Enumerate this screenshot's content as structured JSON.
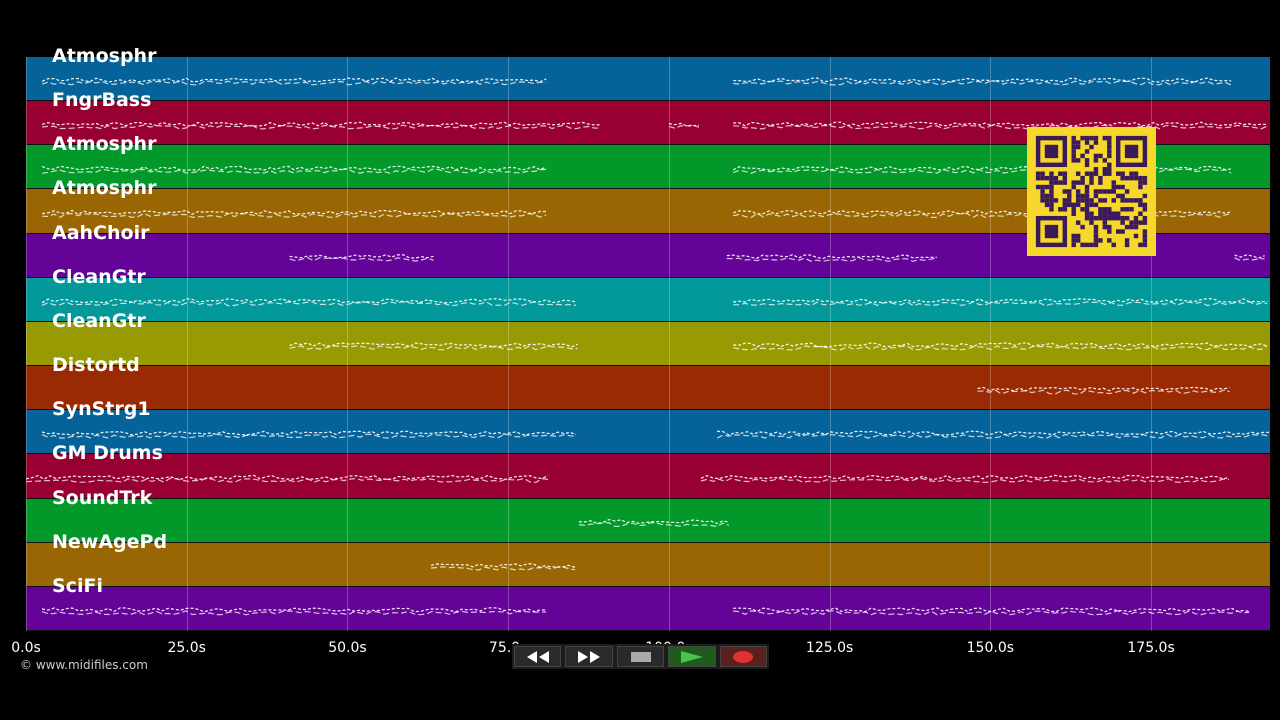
{
  "tracks": [
    {
      "name": "Atmosphr",
      "color": "#05639a"
    },
    {
      "name": "FngrBass",
      "color": "#980031"
    },
    {
      "name": "Atmosphr",
      "color": "#03982a"
    },
    {
      "name": "Atmosphr",
      "color": "#9a6603"
    },
    {
      "name": "AahChoir",
      "color": "#630398"
    },
    {
      "name": "CleanGtr",
      "color": "#03989a"
    },
    {
      "name": "CleanGtr",
      "color": "#989a03"
    },
    {
      "name": "Distortd",
      "color": "#9a2a03"
    },
    {
      "name": "SynStrg1",
      "color": "#05639a"
    },
    {
      "name": "GM Drums",
      "color": "#980031"
    },
    {
      "name": "SoundTrk",
      "color": "#03982a"
    },
    {
      "name": "NewAgePd",
      "color": "#9a6603"
    },
    {
      "name": "SciFi",
      "color": "#630398"
    }
  ],
  "time_axis": {
    "max_seconds": 193.5,
    "ticks": [
      {
        "value": 0,
        "label": "0.0s"
      },
      {
        "value": 25,
        "label": "25.0s"
      },
      {
        "value": 50,
        "label": "50.0s"
      },
      {
        "value": 75,
        "label": "75.0s"
      },
      {
        "value": 100,
        "label": "100.0s"
      },
      {
        "value": 125,
        "label": "125.0s"
      },
      {
        "value": 150,
        "label": "150.0s"
      },
      {
        "value": 175,
        "label": "175.0s"
      }
    ]
  },
  "note_segments": [
    {
      "track": 0,
      "start": 2.5,
      "end": 81.5
    },
    {
      "track": 0,
      "start": 110,
      "end": 188
    },
    {
      "track": 1,
      "start": 2.5,
      "end": 90
    },
    {
      "track": 1,
      "start": 100,
      "end": 105
    },
    {
      "track": 1,
      "start": 110,
      "end": 193.5
    },
    {
      "track": 2,
      "start": 2.5,
      "end": 81.5
    },
    {
      "track": 2,
      "start": 110,
      "end": 188
    },
    {
      "track": 3,
      "start": 2.5,
      "end": 81.5
    },
    {
      "track": 3,
      "start": 110,
      "end": 188
    },
    {
      "track": 4,
      "start": 41,
      "end": 64
    },
    {
      "track": 4,
      "start": 109,
      "end": 142
    },
    {
      "track": 4,
      "start": 188,
      "end": 193.5
    },
    {
      "track": 5,
      "start": 2.5,
      "end": 86
    },
    {
      "track": 5,
      "start": 110,
      "end": 193.5
    },
    {
      "track": 6,
      "start": 41,
      "end": 86
    },
    {
      "track": 6,
      "start": 110,
      "end": 193.5
    },
    {
      "track": 7,
      "start": 148,
      "end": 188
    },
    {
      "track": 8,
      "start": 2.5,
      "end": 86
    },
    {
      "track": 8,
      "start": 107.5,
      "end": 193.5
    },
    {
      "track": 9,
      "start": 0,
      "end": 81.5
    },
    {
      "track": 9,
      "start": 105,
      "end": 188
    },
    {
      "track": 10,
      "start": 86,
      "end": 110
    },
    {
      "track": 11,
      "start": 63,
      "end": 86
    },
    {
      "track": 12,
      "start": 2.5,
      "end": 81.5
    },
    {
      "track": 12,
      "start": 110,
      "end": 191
    }
  ],
  "copyright": "© www.midifiles.com",
  "transport": {
    "rewind_icon": "rewind-icon",
    "fastforward_icon": "fast-forward-icon",
    "stop_icon": "stop-icon",
    "play_icon": "play-icon",
    "record_icon": "record-icon"
  },
  "qr": {
    "color": "#f5d82a",
    "dark": "#3a1a5a"
  }
}
